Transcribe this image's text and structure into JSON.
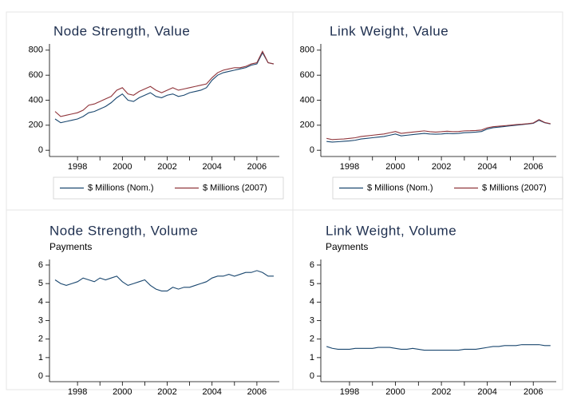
{
  "chart_data": [
    {
      "type": "line",
      "title": "Node Strength, Value",
      "x": [
        1997,
        1997.25,
        1997.5,
        1997.75,
        1998,
        1998.25,
        1998.5,
        1998.75,
        1999,
        1999.25,
        1999.5,
        1999.75,
        2000,
        2000.25,
        2000.5,
        2000.75,
        2001,
        2001.25,
        2001.5,
        2001.75,
        2002,
        2002.25,
        2002.5,
        2002.75,
        2003,
        2003.25,
        2003.5,
        2003.75,
        2004,
        2004.25,
        2004.5,
        2004.75,
        2005,
        2005.25,
        2005.5,
        2005.75,
        2006,
        2006.25,
        2006.5,
        2006.75
      ],
      "series": [
        {
          "name": "$ Millions (Nom.)",
          "color": "#1a476f",
          "values": [
            250,
            220,
            230,
            240,
            250,
            270,
            300,
            310,
            330,
            350,
            380,
            420,
            450,
            400,
            390,
            420,
            440,
            460,
            430,
            420,
            440,
            450,
            430,
            440,
            460,
            470,
            480,
            500,
            560,
            600,
            620,
            630,
            640,
            650,
            660,
            680,
            690,
            780,
            700,
            690
          ]
        },
        {
          "name": "$ Millions (2007)",
          "color": "#90353b",
          "values": [
            310,
            270,
            280,
            290,
            300,
            320,
            360,
            370,
            390,
            410,
            430,
            480,
            500,
            450,
            440,
            470,
            490,
            510,
            480,
            460,
            480,
            500,
            480,
            490,
            500,
            510,
            520,
            530,
            580,
            620,
            640,
            650,
            660,
            660,
            670,
            690,
            700,
            790,
            700,
            690
          ]
        }
      ],
      "xlim": [
        1996.75,
        2007.0
      ],
      "xticks": [
        1998,
        2000,
        2002,
        2004,
        2006
      ],
      "xminor": [
        1999,
        2001,
        2003,
        2005
      ],
      "ylim": [
        -50,
        850
      ],
      "yticks": [
        0,
        200,
        400,
        600,
        800
      ],
      "legend": "bottom"
    },
    {
      "type": "line",
      "title": "Link Weight, Value",
      "x": [
        1997,
        1997.25,
        1997.5,
        1997.75,
        1998,
        1998.25,
        1998.5,
        1998.75,
        1999,
        1999.25,
        1999.5,
        1999.75,
        2000,
        2000.25,
        2000.5,
        2000.75,
        2001,
        2001.25,
        2001.5,
        2001.75,
        2002,
        2002.25,
        2002.5,
        2002.75,
        2003,
        2003.25,
        2003.5,
        2003.75,
        2004,
        2004.25,
        2004.5,
        2004.75,
        2005,
        2005.25,
        2005.5,
        2005.75,
        2006,
        2006.25,
        2006.5,
        2006.75
      ],
      "series": [
        {
          "name": "$ Millions (Nom.)",
          "color": "#1a476f",
          "values": [
            70,
            65,
            68,
            72,
            75,
            80,
            90,
            95,
            100,
            105,
            110,
            120,
            130,
            115,
            120,
            125,
            130,
            135,
            130,
            128,
            130,
            135,
            132,
            135,
            140,
            142,
            145,
            150,
            170,
            180,
            185,
            190,
            195,
            200,
            205,
            210,
            215,
            240,
            220,
            210
          ]
        },
        {
          "name": "$ Millions (2007)",
          "color": "#90353b",
          "values": [
            95,
            85,
            88,
            90,
            95,
            100,
            110,
            115,
            120,
            125,
            130,
            140,
            150,
            135,
            140,
            145,
            150,
            155,
            148,
            145,
            148,
            152,
            148,
            150,
            155,
            156,
            158,
            162,
            180,
            188,
            192,
            196,
            200,
            205,
            208,
            212,
            218,
            245,
            222,
            212
          ]
        }
      ],
      "xlim": [
        1996.75,
        2007.0
      ],
      "xticks": [
        1998,
        2000,
        2002,
        2004,
        2006
      ],
      "xminor": [
        1999,
        2001,
        2003,
        2005
      ],
      "ylim": [
        -50,
        850
      ],
      "yticks": [
        0,
        200,
        400,
        600,
        800
      ],
      "legend": "bottom"
    },
    {
      "type": "line",
      "title": "Node Strength, Volume",
      "y_label": "Payments",
      "x": [
        1997,
        1997.25,
        1997.5,
        1997.75,
        1998,
        1998.25,
        1998.5,
        1998.75,
        1999,
        1999.25,
        1999.5,
        1999.75,
        2000,
        2000.25,
        2000.5,
        2000.75,
        2001,
        2001.25,
        2001.5,
        2001.75,
        2002,
        2002.25,
        2002.5,
        2002.75,
        2003,
        2003.25,
        2003.5,
        2003.75,
        2004,
        2004.25,
        2004.5,
        2004.75,
        2005,
        2005.25,
        2005.5,
        2005.75,
        2006,
        2006.25,
        2006.5,
        2006.75
      ],
      "series": [
        {
          "color": "#1a476f",
          "values": [
            5.2,
            5.0,
            4.9,
            5.0,
            5.1,
            5.3,
            5.2,
            5.1,
            5.3,
            5.2,
            5.3,
            5.4,
            5.1,
            4.9,
            5.0,
            5.1,
            5.2,
            4.9,
            4.7,
            4.6,
            4.6,
            4.8,
            4.7,
            4.8,
            4.8,
            4.9,
            5.0,
            5.1,
            5.3,
            5.4,
            5.4,
            5.5,
            5.4,
            5.5,
            5.6,
            5.6,
            5.7,
            5.6,
            5.4,
            5.4
          ]
        }
      ],
      "xlim": [
        1996.75,
        2007.0
      ],
      "xticks": [
        1998,
        2000,
        2002,
        2004,
        2006
      ],
      "xminor": [
        1999,
        2001,
        2003,
        2005
      ],
      "ylim": [
        -0.3,
        6.3
      ],
      "yticks": [
        0,
        1,
        2,
        3,
        4,
        5,
        6
      ]
    },
    {
      "type": "line",
      "title": "Link Weight, Volume",
      "y_label": "Payments",
      "x": [
        1997,
        1997.25,
        1997.5,
        1997.75,
        1998,
        1998.25,
        1998.5,
        1998.75,
        1999,
        1999.25,
        1999.5,
        1999.75,
        2000,
        2000.25,
        2000.5,
        2000.75,
        2001,
        2001.25,
        2001.5,
        2001.75,
        2002,
        2002.25,
        2002.5,
        2002.75,
        2003,
        2003.25,
        2003.5,
        2003.75,
        2004,
        2004.25,
        2004.5,
        2004.75,
        2005,
        2005.25,
        2005.5,
        2005.75,
        2006,
        2006.25,
        2006.5,
        2006.75
      ],
      "series": [
        {
          "color": "#1a476f",
          "values": [
            1.6,
            1.5,
            1.45,
            1.45,
            1.45,
            1.5,
            1.5,
            1.5,
            1.5,
            1.55,
            1.55,
            1.55,
            1.5,
            1.45,
            1.45,
            1.5,
            1.45,
            1.4,
            1.4,
            1.4,
            1.4,
            1.4,
            1.4,
            1.4,
            1.45,
            1.45,
            1.45,
            1.5,
            1.55,
            1.6,
            1.6,
            1.65,
            1.65,
            1.65,
            1.7,
            1.7,
            1.7,
            1.7,
            1.65,
            1.65
          ]
        }
      ],
      "xlim": [
        1996.75,
        2007.0
      ],
      "xticks": [
        1998,
        2000,
        2002,
        2004,
        2006
      ],
      "xminor": [
        1999,
        2001,
        2003,
        2005
      ],
      "ylim": [
        -0.3,
        6.3
      ],
      "yticks": [
        0,
        1,
        2,
        3,
        4,
        5,
        6
      ]
    }
  ]
}
